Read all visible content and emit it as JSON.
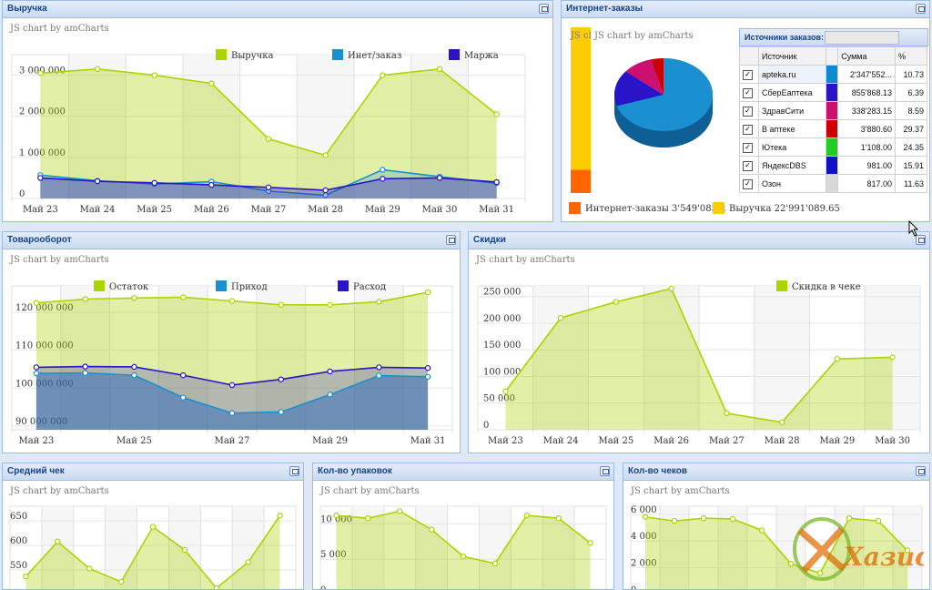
{
  "panels": {
    "revenue": {
      "title": "Выручка"
    },
    "orders": {
      "title": "Интернет-заказы"
    },
    "turnover": {
      "title": "Товарооборот"
    },
    "discounts": {
      "title": "Скидки"
    },
    "avg_check": {
      "title": "Средний чек"
    },
    "packs": {
      "title": "Кол-во упаковок"
    },
    "checks": {
      "title": "Кол-во чеков"
    }
  },
  "watermark": "JS chart by amCharts",
  "watermark_cut": "JS cl",
  "orders_table": {
    "header": "Источники заказов:",
    "columns": [
      "Источник",
      "Сумма",
      "%"
    ],
    "rows": [
      {
        "source": "apteka.ru",
        "color": "#0f8ad0",
        "sum": "2'347'552...",
        "pct": "10.73"
      },
      {
        "source": "СберЕаптека",
        "color": "#2a14c8",
        "sum": "855'868.13",
        "pct": "6.39"
      },
      {
        "source": "ЗдравСити",
        "color": "#cc1070",
        "sum": "338'283.15",
        "pct": "8.59"
      },
      {
        "source": "В аптеке",
        "color": "#cc0000",
        "sum": "3'880.60",
        "pct": "29.37"
      },
      {
        "source": "Ютека",
        "color": "#22cc22",
        "sum": "1'108.00",
        "pct": "24.35"
      },
      {
        "source": "ЯндексDBS",
        "color": "#1010c8",
        "sum": "981.00",
        "pct": "15.91"
      },
      {
        "source": "Озон",
        "color": "#d8d8d8",
        "sum": "817.00",
        "pct": "11.63"
      }
    ]
  },
  "orders_legend": [
    {
      "label": "Интернет-заказы  3'549'085.2",
      "color": "#ff6600"
    },
    {
      "label": "Выручка  22'991'089.65",
      "color": "#ffcc00"
    }
  ],
  "logo_text": "Хазис",
  "chart_data": [
    {
      "id": "revenue",
      "type": "area",
      "categories": [
        "Май 23",
        "Май 24",
        "Май 25",
        "Май 26",
        "Май 27",
        "Май 28",
        "Май 29",
        "Май 30",
        "Май 31"
      ],
      "ytick_labels": [
        "0",
        "1 000 000",
        "2 000 000",
        "3 000 000"
      ],
      "ylim": [
        0,
        3500000
      ],
      "legend": [
        "Выручка",
        "Инет/заказ",
        "Маржа"
      ],
      "series": [
        {
          "name": "Выручка",
          "color": "#aad500",
          "values": [
            3050000,
            3150000,
            3000000,
            2800000,
            1450000,
            1050000,
            3000000,
            3150000,
            2050000
          ]
        },
        {
          "name": "Инет/заказ",
          "color": "#1a90d0",
          "values": [
            570000,
            430000,
            350000,
            410000,
            180000,
            80000,
            700000,
            530000,
            370000
          ]
        },
        {
          "name": "Маржа",
          "color": "#2a14c8",
          "values": [
            500000,
            420000,
            380000,
            330000,
            270000,
            200000,
            480000,
            500000,
            400000
          ]
        }
      ]
    },
    {
      "id": "orders_pie",
      "type": "pie",
      "values": [
        70,
        16,
        10,
        4
      ],
      "colors": [
        "#1a90d0",
        "#2a14c8",
        "#cc1070",
        "#cc0000"
      ],
      "bar_split": [
        0.86,
        0.14
      ]
    },
    {
      "id": "turnover",
      "type": "area",
      "categories": [
        "Май 23",
        "Май 24",
        "Май 25",
        "Май 26",
        "Май 27",
        "Май 28",
        "Май 29",
        "Май 30",
        "Май 31"
      ],
      "xtick_labels": [
        "Май 23",
        "Май 25",
        "Май 27",
        "Май 29",
        "Май 31"
      ],
      "ytick_labels": [
        "90 000 000",
        "100 000 000",
        "110 000 000",
        "120 000 000"
      ],
      "ylim": [
        89000000,
        127000000
      ],
      "legend": [
        "Остаток",
        "Приход",
        "Расход"
      ],
      "series": [
        {
          "name": "Остаток",
          "color": "#aad500",
          "values": [
            122500000,
            123500000,
            123800000,
            124000000,
            123000000,
            122000000,
            122000000,
            122800000,
            125300000
          ]
        },
        {
          "name": "Расход",
          "color": "#2a14c8",
          "values": [
            105500000,
            105700000,
            105600000,
            103400000,
            100800000,
            102300000,
            104400000,
            105500000,
            105300000
          ]
        },
        {
          "name": "Приход",
          "color": "#1a90d0",
          "values": [
            103900000,
            104000000,
            103400000,
            97500000,
            93400000,
            93700000,
            98300000,
            103300000,
            103000000
          ]
        }
      ]
    },
    {
      "id": "discounts",
      "type": "area",
      "categories": [
        "Май 23",
        "Май 24",
        "Май 25",
        "Май 26",
        "Май 27",
        "Май 28",
        "Май 29",
        "Май 30"
      ],
      "ytick_labels": [
        "0",
        "50 000",
        "100 000",
        "150 000",
        "200 000",
        "250 000"
      ],
      "ylim": [
        0,
        270000
      ],
      "legend": [
        "Скидка в чеке"
      ],
      "series": [
        {
          "name": "Скидка в чеке",
          "color": "#aad500",
          "values": [
            72000,
            210000,
            240000,
            265000,
            31000,
            14000,
            133000,
            136000
          ]
        }
      ]
    },
    {
      "id": "avg_check",
      "type": "area",
      "ytick_labels": [
        "550",
        "600",
        "650"
      ],
      "ylim": [
        500,
        680
      ],
      "series": [
        {
          "color": "#aad500",
          "values": [
            537,
            608,
            553,
            526,
            638,
            591,
            513,
            566,
            661
          ]
        }
      ]
    },
    {
      "id": "packs",
      "type": "area",
      "ytick_labels": [
        "0",
        "5 000",
        "10 000"
      ],
      "ylim": [
        0,
        12500
      ],
      "series": [
        {
          "color": "#aad500",
          "values": [
            11200,
            10800,
            11800,
            9200,
            5400,
            4400,
            11200,
            10800,
            7300
          ]
        }
      ]
    },
    {
      "id": "checks",
      "type": "area",
      "ytick_labels": [
        "0",
        "2 000",
        "4 000",
        "6 000"
      ],
      "ylim": [
        0,
        6600
      ],
      "series": [
        {
          "color": "#aad500",
          "values": [
            5800,
            5500,
            5700,
            5650,
            4800,
            2300,
            1600,
            5700,
            5500,
            3300
          ]
        }
      ]
    }
  ]
}
